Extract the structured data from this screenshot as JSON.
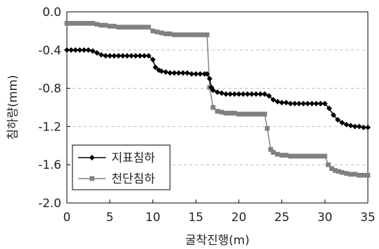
{
  "chart_data": {
    "type": "line",
    "title": "",
    "xlabel": "굴착진행(m)",
    "ylabel": "침하량(mm)",
    "xlim": [
      0,
      35
    ],
    "ylim": [
      -2.0,
      0.0
    ],
    "xticks": [
      "0",
      "5",
      "10",
      "15",
      "20",
      "25",
      "30",
      "35"
    ],
    "yticks": [
      "0.0",
      "-0.4",
      "-0.8",
      "-1.2",
      "-1.6",
      "-2.0"
    ],
    "grid": "horizontal dashed",
    "legend_position": "bottom-left",
    "series": [
      {
        "name": "지표침하",
        "marker": "diamond",
        "color": "#000000",
        "points": [
          [
            0.0,
            -0.4
          ],
          [
            0.5,
            -0.4
          ],
          [
            1.0,
            -0.4
          ],
          [
            1.5,
            -0.4
          ],
          [
            2.0,
            -0.4
          ],
          [
            2.5,
            -0.4
          ],
          [
            3.0,
            -0.41
          ],
          [
            3.5,
            -0.43
          ],
          [
            4.0,
            -0.45
          ],
          [
            4.5,
            -0.46
          ],
          [
            5.0,
            -0.46
          ],
          [
            5.5,
            -0.46
          ],
          [
            6.0,
            -0.46
          ],
          [
            6.5,
            -0.46
          ],
          [
            7.0,
            -0.46
          ],
          [
            7.5,
            -0.46
          ],
          [
            8.0,
            -0.46
          ],
          [
            8.5,
            -0.46
          ],
          [
            9.0,
            -0.46
          ],
          [
            9.5,
            -0.46
          ],
          [
            10.0,
            -0.5
          ],
          [
            10.3,
            -0.58
          ],
          [
            10.7,
            -0.61
          ],
          [
            11.0,
            -0.62
          ],
          [
            11.5,
            -0.63
          ],
          [
            12.0,
            -0.64
          ],
          [
            12.5,
            -0.64
          ],
          [
            13.0,
            -0.64
          ],
          [
            13.5,
            -0.64
          ],
          [
            14.0,
            -0.64
          ],
          [
            14.5,
            -0.65
          ],
          [
            15.0,
            -0.65
          ],
          [
            15.5,
            -0.65
          ],
          [
            16.0,
            -0.65
          ],
          [
            16.3,
            -0.65
          ],
          [
            16.6,
            -0.7
          ],
          [
            16.8,
            -0.79
          ],
          [
            17.0,
            -0.82
          ],
          [
            17.5,
            -0.84
          ],
          [
            18.0,
            -0.85
          ],
          [
            18.5,
            -0.86
          ],
          [
            19.0,
            -0.86
          ],
          [
            19.5,
            -0.86
          ],
          [
            20.0,
            -0.86
          ],
          [
            20.5,
            -0.86
          ],
          [
            21.0,
            -0.86
          ],
          [
            21.5,
            -0.86
          ],
          [
            22.0,
            -0.86
          ],
          [
            22.5,
            -0.86
          ],
          [
            23.0,
            -0.86
          ],
          [
            23.5,
            -0.88
          ],
          [
            24.0,
            -0.92
          ],
          [
            24.5,
            -0.94
          ],
          [
            25.0,
            -0.95
          ],
          [
            25.5,
            -0.95
          ],
          [
            26.0,
            -0.96
          ],
          [
            26.5,
            -0.96
          ],
          [
            27.0,
            -0.96
          ],
          [
            27.5,
            -0.96
          ],
          [
            28.0,
            -0.96
          ],
          [
            28.5,
            -0.96
          ],
          [
            29.0,
            -0.96
          ],
          [
            29.5,
            -0.96
          ],
          [
            30.0,
            -0.96
          ],
          [
            30.5,
            -1.01
          ],
          [
            31.0,
            -1.08
          ],
          [
            31.5,
            -1.13
          ],
          [
            32.0,
            -1.16
          ],
          [
            32.5,
            -1.18
          ],
          [
            33.0,
            -1.19
          ],
          [
            33.5,
            -1.2
          ],
          [
            34.0,
            -1.2
          ],
          [
            34.5,
            -1.21
          ],
          [
            35.0,
            -1.21
          ]
        ]
      },
      {
        "name": "천단침하",
        "marker": "square",
        "color": "#808080",
        "points": [
          [
            0.0,
            -0.12
          ],
          [
            0.5,
            -0.12
          ],
          [
            1.0,
            -0.12
          ],
          [
            1.5,
            -0.12
          ],
          [
            2.0,
            -0.12
          ],
          [
            2.5,
            -0.12
          ],
          [
            3.0,
            -0.12
          ],
          [
            3.5,
            -0.13
          ],
          [
            4.0,
            -0.14
          ],
          [
            4.5,
            -0.14
          ],
          [
            5.0,
            -0.15
          ],
          [
            5.5,
            -0.15
          ],
          [
            6.0,
            -0.16
          ],
          [
            6.5,
            -0.16
          ],
          [
            7.0,
            -0.16
          ],
          [
            7.5,
            -0.16
          ],
          [
            8.0,
            -0.16
          ],
          [
            8.5,
            -0.16
          ],
          [
            9.0,
            -0.16
          ],
          [
            9.5,
            -0.16
          ],
          [
            10.0,
            -0.2
          ],
          [
            10.5,
            -0.21
          ],
          [
            11.0,
            -0.22
          ],
          [
            11.5,
            -0.23
          ],
          [
            12.0,
            -0.23
          ],
          [
            12.5,
            -0.24
          ],
          [
            13.0,
            -0.24
          ],
          [
            13.5,
            -0.24
          ],
          [
            14.0,
            -0.24
          ],
          [
            14.5,
            -0.24
          ],
          [
            15.0,
            -0.24
          ],
          [
            15.5,
            -0.24
          ],
          [
            16.0,
            -0.24
          ],
          [
            16.3,
            -0.24
          ],
          [
            16.6,
            -0.79
          ],
          [
            17.0,
            -1.0
          ],
          [
            17.5,
            -1.04
          ],
          [
            18.0,
            -1.05
          ],
          [
            18.5,
            -1.06
          ],
          [
            19.0,
            -1.06
          ],
          [
            19.5,
            -1.06
          ],
          [
            20.0,
            -1.07
          ],
          [
            20.5,
            -1.07
          ],
          [
            21.0,
            -1.07
          ],
          [
            21.5,
            -1.07
          ],
          [
            22.0,
            -1.07
          ],
          [
            22.5,
            -1.07
          ],
          [
            23.0,
            -1.07
          ],
          [
            23.3,
            -1.22
          ],
          [
            23.7,
            -1.44
          ],
          [
            24.0,
            -1.47
          ],
          [
            24.5,
            -1.49
          ],
          [
            25.0,
            -1.5
          ],
          [
            25.5,
            -1.5
          ],
          [
            26.0,
            -1.51
          ],
          [
            26.5,
            -1.51
          ],
          [
            27.0,
            -1.51
          ],
          [
            27.5,
            -1.51
          ],
          [
            28.0,
            -1.51
          ],
          [
            28.5,
            -1.51
          ],
          [
            29.0,
            -1.51
          ],
          [
            29.5,
            -1.51
          ],
          [
            30.0,
            -1.51
          ],
          [
            30.4,
            -1.6
          ],
          [
            30.8,
            -1.64
          ],
          [
            31.2,
            -1.66
          ],
          [
            31.6,
            -1.67
          ],
          [
            32.0,
            -1.68
          ],
          [
            32.5,
            -1.69
          ],
          [
            33.0,
            -1.7
          ],
          [
            33.5,
            -1.7
          ],
          [
            34.0,
            -1.71
          ],
          [
            34.5,
            -1.71
          ],
          [
            35.0,
            -1.71
          ]
        ]
      }
    ]
  }
}
